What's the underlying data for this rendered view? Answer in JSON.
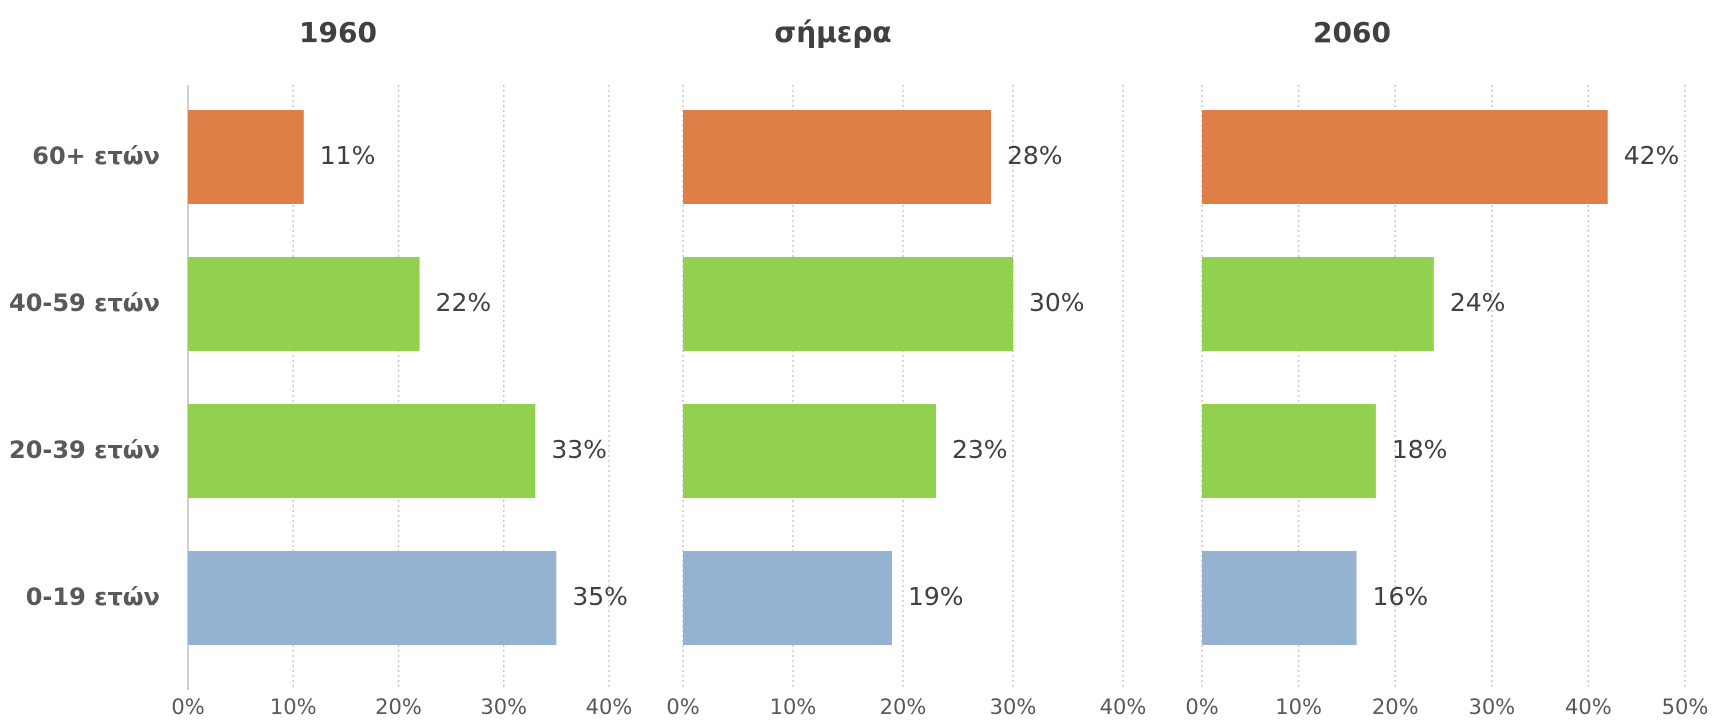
{
  "chart_data": [
    {
      "type": "bar",
      "orientation": "horizontal",
      "title": "1960",
      "categories": [
        "60+ ετών",
        "40-59 ετών",
        "20-39 ετών",
        "0-19 ετών"
      ],
      "values": [
        11,
        22,
        33,
        35
      ],
      "value_labels": [
        "11%",
        "22%",
        "33%",
        "35%"
      ],
      "colors": [
        "#dd7f47",
        "#92d050",
        "#92d050",
        "#95b3d1"
      ],
      "xlim": [
        0,
        40
      ],
      "xticks": [
        {
          "value": 0,
          "label": "0%"
        },
        {
          "value": 10,
          "label": "10%"
        },
        {
          "value": 20,
          "label": "20%"
        },
        {
          "value": 30,
          "label": "30%"
        },
        {
          "value": 40,
          "label": "40%"
        }
      ],
      "grid": true
    },
    {
      "type": "bar",
      "orientation": "horizontal",
      "title": "σήμερα",
      "values": [
        28,
        30,
        23,
        19
      ],
      "value_labels": [
        "28%",
        "30%",
        "23%",
        "19%"
      ],
      "colors": [
        "#dd7f47",
        "#92d050",
        "#92d050",
        "#95b3d1"
      ],
      "xlim": [
        0,
        40
      ],
      "xticks": [
        {
          "value": 0,
          "label": "0%"
        },
        {
          "value": 10,
          "label": "10%"
        },
        {
          "value": 20,
          "label": "20%"
        },
        {
          "value": 30,
          "label": "30%"
        },
        {
          "value": 40,
          "label": "40%"
        }
      ],
      "grid": true
    },
    {
      "type": "bar",
      "orientation": "horizontal",
      "title": "2060",
      "values": [
        42,
        24,
        18,
        16
      ],
      "value_labels": [
        "42%",
        "24%",
        "18%",
        "16%"
      ],
      "colors": [
        "#dd7f47",
        "#92d050",
        "#92d050",
        "#95b3d1"
      ],
      "xlim": [
        0,
        50
      ],
      "xticks": [
        {
          "value": 0,
          "label": "0%"
        },
        {
          "value": 10,
          "label": "10%"
        },
        {
          "value": 20,
          "label": "20%"
        },
        {
          "value": 30,
          "label": "30%"
        },
        {
          "value": 40,
          "label": "40%"
        },
        {
          "value": 50,
          "label": "50%"
        }
      ],
      "grid": true
    }
  ]
}
